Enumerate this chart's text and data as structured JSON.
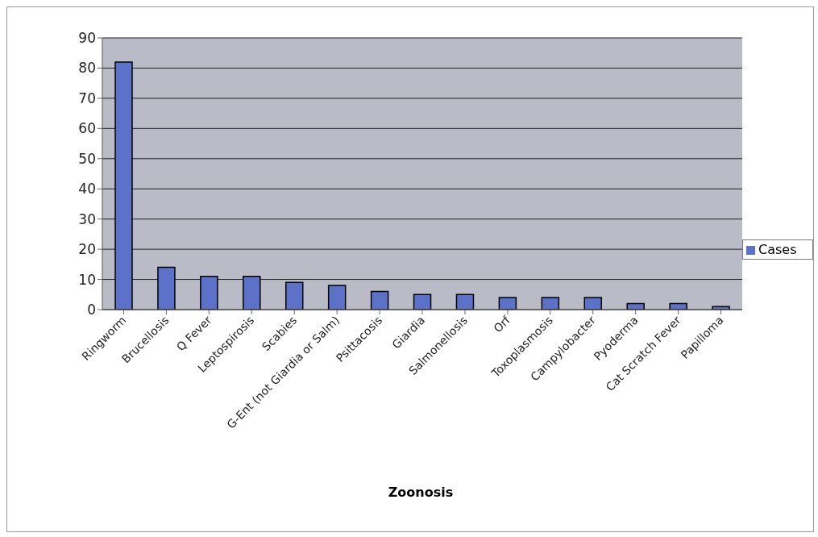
{
  "chart_data": {
    "type": "bar",
    "xlabel": "Zoonosis",
    "categories": [
      "Ringworm",
      "Brucellosis",
      "Q Fever",
      "Leptospirosis",
      "Scabies",
      "G-Ent (not Giardia or Salm)",
      "Psittacosis",
      "Giardia",
      "Salmonellosis",
      "Orf",
      "Toxoplasmosis",
      "Campylobacter",
      "Pyoderma",
      "Cat Scratch Fever",
      "Papilloma"
    ],
    "series": [
      {
        "name": "Cases",
        "color": "#5b72c8",
        "values": [
          82,
          14,
          11,
          11,
          9,
          8,
          6,
          5,
          5,
          4,
          4,
          4,
          2,
          2,
          1
        ]
      }
    ],
    "ylim": [
      0,
      90
    ],
    "yticks": [
      0,
      10,
      20,
      30,
      40,
      50,
      60,
      70,
      80,
      90
    ],
    "grid": "y",
    "legend": "right"
  }
}
